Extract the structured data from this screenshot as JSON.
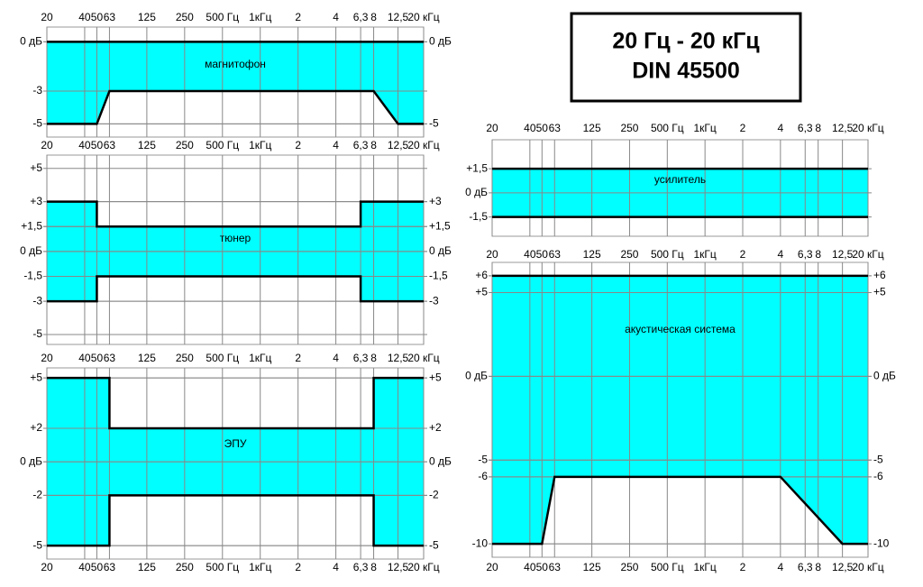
{
  "title_box": {
    "lines": [
      "20 Гц - 20 кГц",
      "DIN 45500"
    ]
  },
  "chart_data": [
    {
      "type": "band",
      "label": "магнитофон",
      "xscale": "log",
      "xlim": [
        20,
        20000
      ],
      "xticks": [
        20,
        40,
        50,
        63,
        125,
        250,
        {
          "value": 500,
          "label": "500 Гц"
        },
        {
          "value": 1000,
          "label": "1кГц"
        },
        {
          "value": 2000,
          "label": "2"
        },
        {
          "value": 4000,
          "label": "4"
        },
        {
          "value": 6300,
          "label": "6,3"
        },
        {
          "value": 8000,
          "label": "8"
        },
        {
          "value": 12500,
          "label": "12,5"
        },
        {
          "value": 20000,
          "label": "20 кГц"
        }
      ],
      "ylim": [
        -5.8,
        0.9
      ],
      "yticks": [
        {
          "value": 0,
          "label": "0 дБ"
        },
        -3,
        -5
      ],
      "y2lim": [
        -5.8,
        0.9
      ],
      "y2ticks": [
        {
          "value": 0,
          "label": "0 дБ"
        },
        -5
      ],
      "fill": "#00ffff",
      "series": [
        {
          "color": "#000000",
          "x": [
            20,
            20000
          ],
          "values": [
            0,
            0
          ]
        },
        {
          "color": "#000000",
          "x": [
            20,
            50,
            63,
            8000,
            12500,
            20000
          ],
          "values": [
            -5,
            -5,
            -3,
            -3,
            -5,
            -5
          ]
        }
      ]
    },
    {
      "type": "band",
      "label": "тюнер",
      "xscale": "log",
      "xlim": [
        20,
        20000
      ],
      "xticks": [
        20,
        40,
        50,
        63,
        125,
        250,
        {
          "value": 500,
          "label": "500 Гц"
        },
        {
          "value": 1000,
          "label": "1кГц"
        },
        {
          "value": 2000,
          "label": "2"
        },
        {
          "value": 4000,
          "label": "4"
        },
        {
          "value": 6300,
          "label": "6,3"
        },
        {
          "value": 8000,
          "label": "8"
        },
        {
          "value": 12500,
          "label": "12,5"
        },
        {
          "value": 20000,
          "label": "20 кГц"
        }
      ],
      "ylim": [
        -5.6,
        5.8
      ],
      "yticks": [
        {
          "value": 5,
          "label": "+5"
        },
        {
          "value": 3,
          "label": "+3"
        },
        {
          "value": 1.5,
          "label": "+1,5"
        },
        {
          "value": 0,
          "label": "0 дБ"
        },
        {
          "value": -1.5,
          "label": "-1,5"
        },
        -3,
        -5
      ],
      "y2lim": [
        -5.6,
        5.8
      ],
      "y2ticks": [
        {
          "value": 3,
          "label": "+3"
        },
        {
          "value": 1.5,
          "label": "+1,5"
        },
        {
          "value": 0,
          "label": "0 дБ"
        },
        {
          "value": -1.5,
          "label": "-1,5"
        },
        -3
      ],
      "fill": "#00ffff",
      "series": [
        {
          "color": "#000000",
          "x": [
            20,
            50,
            50,
            6300,
            6300,
            20000
          ],
          "values": [
            3,
            3,
            1.5,
            1.5,
            3,
            3
          ]
        },
        {
          "color": "#000000",
          "x": [
            20,
            50,
            50,
            6300,
            6300,
            20000
          ],
          "values": [
            -3,
            -3,
            -1.5,
            -1.5,
            -3,
            -3
          ]
        }
      ]
    },
    {
      "type": "band",
      "label": "ЭПУ",
      "xscale": "log",
      "xlim": [
        20,
        20000
      ],
      "xticks": [
        20,
        40,
        50,
        63,
        125,
        250,
        {
          "value": 500,
          "label": "500 Гц"
        },
        {
          "value": 1000,
          "label": "1кГц"
        },
        {
          "value": 2000,
          "label": "2"
        },
        {
          "value": 4000,
          "label": "4"
        },
        {
          "value": 6300,
          "label": "6,3"
        },
        {
          "value": 8000,
          "label": "8"
        },
        {
          "value": 12500,
          "label": "12,5"
        },
        {
          "value": 20000,
          "label": "20 кГц"
        }
      ],
      "ylim": [
        -5.8,
        5.6
      ],
      "yticks": [
        {
          "value": 5,
          "label": "+5"
        },
        {
          "value": 2,
          "label": "+2"
        },
        {
          "value": 0,
          "label": "0 дБ"
        },
        -2,
        -5
      ],
      "y2lim": [
        -5.8,
        5.6
      ],
      "y2ticks": [
        {
          "value": 5,
          "label": "+5"
        },
        {
          "value": 2,
          "label": "+2"
        },
        {
          "value": 0,
          "label": "0 дБ"
        },
        -2,
        -5
      ],
      "fill": "#00ffff",
      "series": [
        {
          "color": "#000000",
          "x": [
            20,
            63,
            63,
            8000,
            8000,
            20000
          ],
          "values": [
            5,
            5,
            2,
            2,
            5,
            5
          ]
        },
        {
          "color": "#000000",
          "x": [
            20,
            63,
            63,
            8000,
            8000,
            20000
          ],
          "values": [
            -5,
            -5,
            -2,
            -2,
            -5,
            -5
          ]
        }
      ]
    },
    {
      "type": "band",
      "label": "усилитель",
      "xscale": "log",
      "xlim": [
        20,
        20000
      ],
      "xticks": [
        20,
        40,
        50,
        63,
        125,
        250,
        {
          "value": 500,
          "label": "500 Гц"
        },
        {
          "value": 1000,
          "label": "1кГц"
        },
        {
          "value": 2000,
          "label": "2"
        },
        {
          "value": 4000,
          "label": "4"
        },
        {
          "value": 6300,
          "label": "6,3"
        },
        {
          "value": 8000,
          "label": "8"
        },
        {
          "value": 12500,
          "label": "12,5"
        },
        {
          "value": 20000,
          "label": "20 кГц"
        }
      ],
      "ylim": [
        -2.7,
        3.3
      ],
      "yticks": [
        {
          "value": 1.5,
          "label": "+1,5"
        },
        {
          "value": 0,
          "label": "0 дБ"
        },
        {
          "value": -1.5,
          "label": "-1,5"
        }
      ],
      "fill": "#00ffff",
      "series": [
        {
          "color": "#000000",
          "x": [
            20,
            20000
          ],
          "values": [
            1.5,
            1.5
          ]
        },
        {
          "color": "#000000",
          "x": [
            20,
            20000
          ],
          "values": [
            -1.5,
            -1.5
          ]
        }
      ]
    },
    {
      "type": "band",
      "label": "акустическая система",
      "xscale": "log",
      "xlim": [
        20,
        20000
      ],
      "xticks": [
        20,
        40,
        50,
        63,
        125,
        250,
        {
          "value": 500,
          "label": "500 Гц"
        },
        {
          "value": 1000,
          "label": "1кГц"
        },
        {
          "value": 2000,
          "label": "2"
        },
        {
          "value": 4000,
          "label": "4"
        },
        {
          "value": 6300,
          "label": "6,3"
        },
        {
          "value": 8000,
          "label": "8"
        },
        {
          "value": 12500,
          "label": "12,5"
        },
        {
          "value": 20000,
          "label": "20 кГц"
        }
      ],
      "ylim": [
        -10.8,
        6.8
      ],
      "yticks": [
        {
          "value": 6,
          "label": "+6"
        },
        {
          "value": 5,
          "label": "+5"
        },
        {
          "value": 0,
          "label": "0 дБ"
        },
        -5,
        -6,
        -10
      ],
      "y2lim": [
        -10.8,
        6.8
      ],
      "y2ticks": [
        {
          "value": 6,
          "label": "+6"
        },
        {
          "value": 5,
          "label": "+5"
        },
        {
          "value": 0,
          "label": "0 дБ"
        },
        -5,
        -6,
        -10
      ],
      "fill": "#00ffff",
      "series": [
        {
          "color": "#000000",
          "x": [
            20,
            20000
          ],
          "values": [
            6,
            6
          ]
        },
        {
          "color": "#000000",
          "x": [
            20,
            50,
            63,
            4000,
            12500,
            20000
          ],
          "values": [
            -10,
            -10,
            -6,
            -6,
            -10,
            -10
          ]
        }
      ]
    }
  ]
}
